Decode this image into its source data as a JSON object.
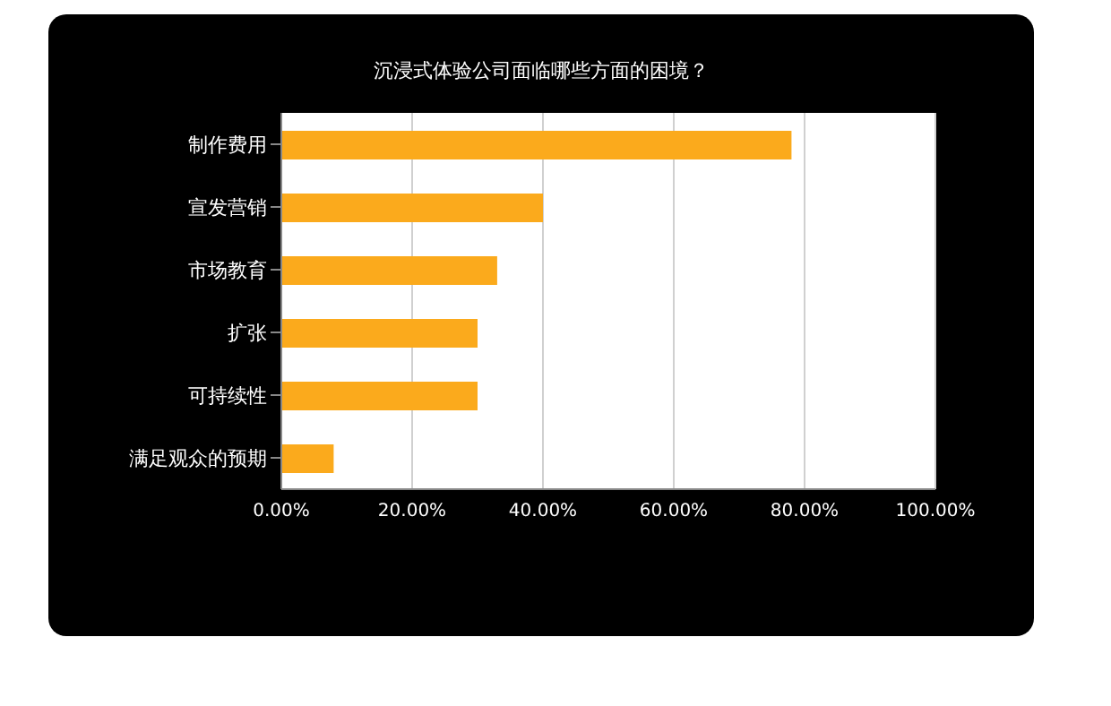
{
  "chart_data": {
    "type": "bar",
    "orientation": "horizontal",
    "title": "沉浸式体验公司面临哪些方面的困境？",
    "categories": [
      "制作费用",
      "宣发营销",
      "市场教育",
      "扩张",
      "可持续性",
      "满足观众的预期"
    ],
    "values": [
      78,
      40,
      33,
      30,
      30,
      8
    ],
    "color": "#fbaa1c",
    "xlim": [
      0,
      100
    ],
    "xticks": [
      {
        "value": 0,
        "label": "0.00%"
      },
      {
        "value": 20,
        "label": "20.00%"
      },
      {
        "value": 40,
        "label": "40.00%"
      },
      {
        "value": 60,
        "label": "60.00%"
      },
      {
        "value": 80,
        "label": "80.00%"
      },
      {
        "value": 100,
        "label": "100.00%"
      }
    ],
    "grid": "x",
    "legend": false
  }
}
